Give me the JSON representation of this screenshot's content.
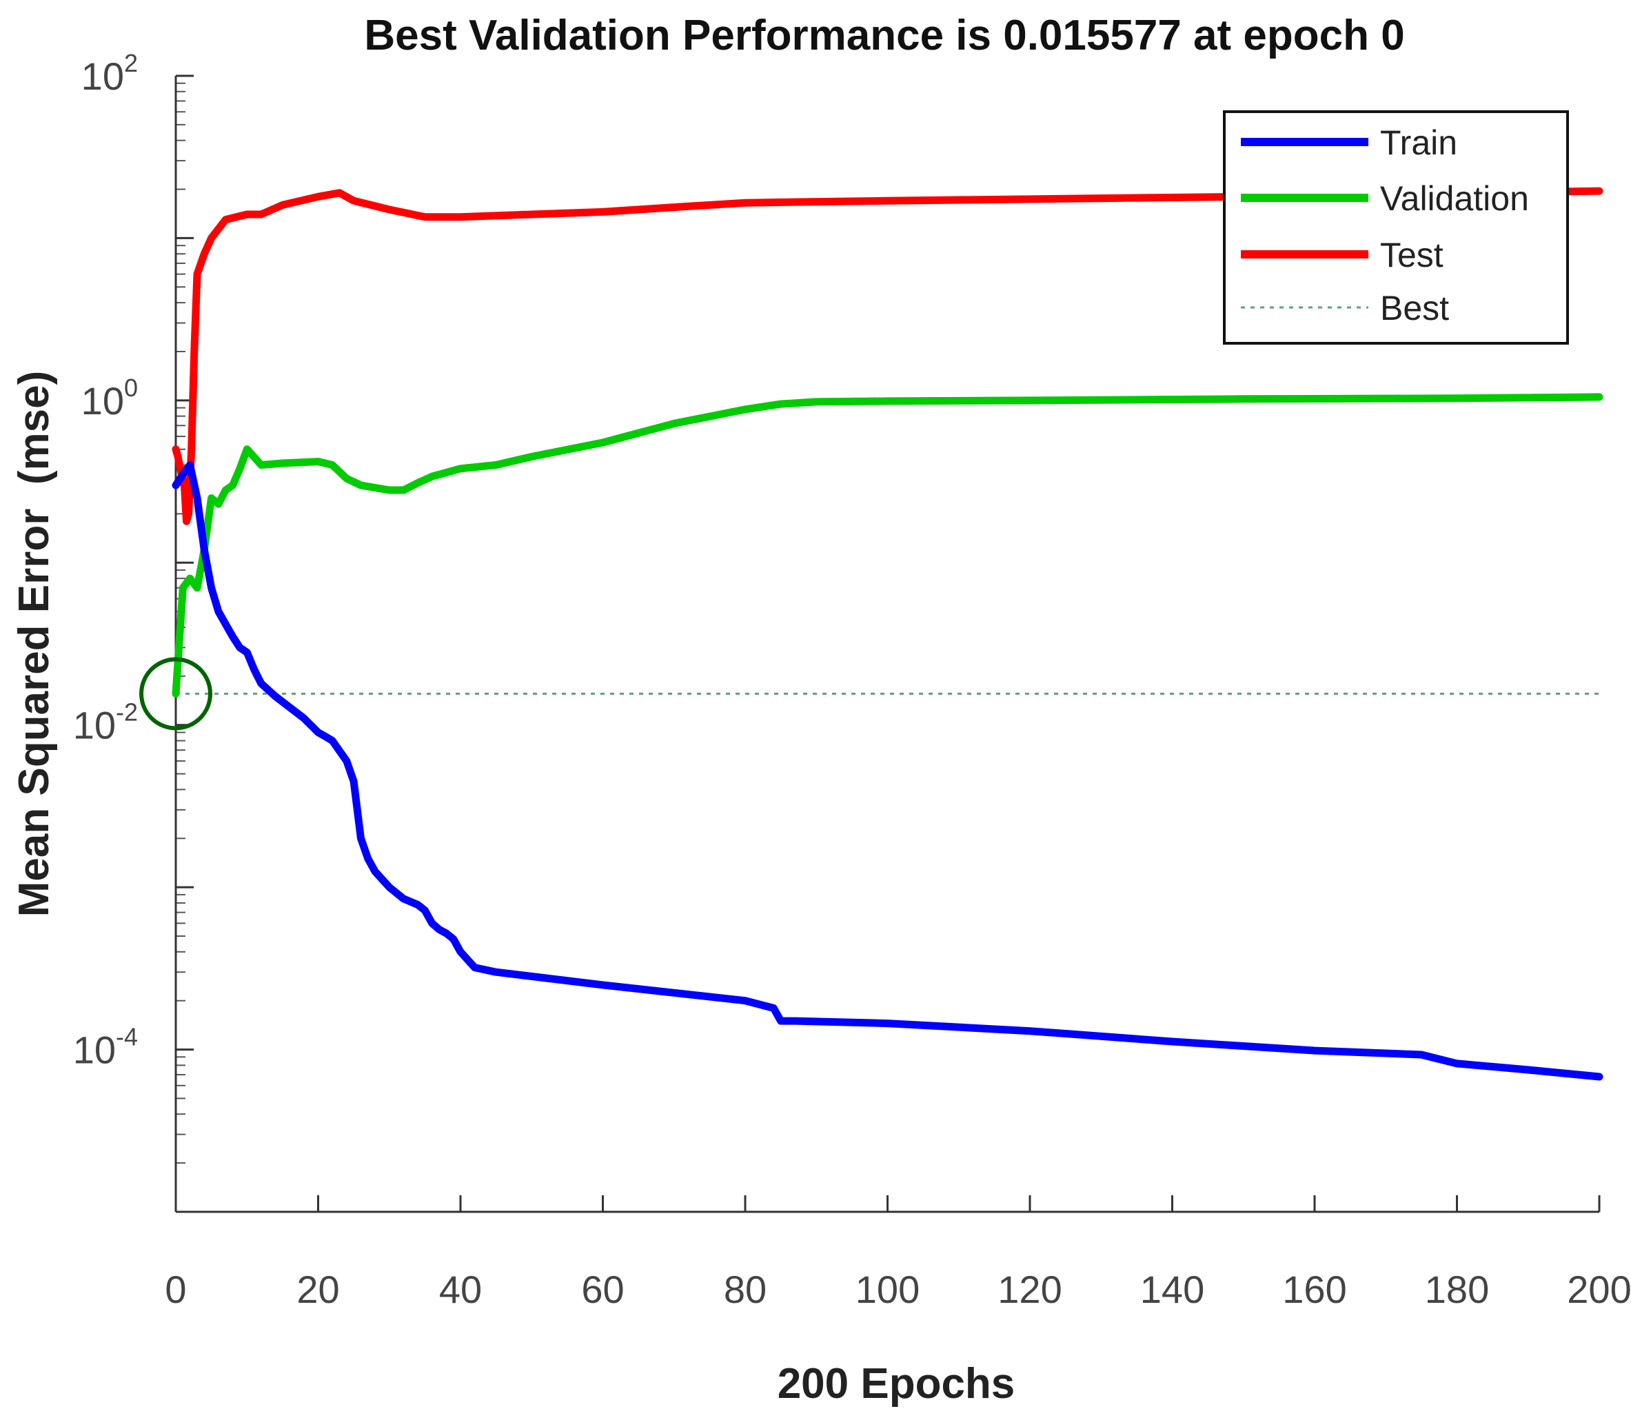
{
  "chart_data": {
    "type": "line",
    "title": "Best Validation Performance is 0.015577 at epoch 0",
    "xlabel": "200 Epochs",
    "ylabel": "Mean Squared Error  (mse)",
    "y_scale": "log",
    "xlim": [
      0,
      200
    ],
    "ylim_exp": [
      -5,
      2
    ],
    "x_ticks": [
      0,
      20,
      40,
      60,
      80,
      100,
      120,
      140,
      160,
      180,
      200
    ],
    "x_tick_labels": [
      "0",
      "20",
      "40",
      "60",
      "80",
      "100",
      "120",
      "140",
      "160",
      "180",
      "200"
    ],
    "y_tick_labels": [
      {
        "exp": -4,
        "base": "10",
        "sup": "-4"
      },
      {
        "exp": -2,
        "base": "10",
        "sup": "-2"
      },
      {
        "exp": 0,
        "base": "10",
        "sup": "0"
      },
      {
        "exp": 2,
        "base": "10",
        "sup": "2"
      }
    ],
    "legend_position": "top-right",
    "series": [
      {
        "name": "Train",
        "color": "#0000ff",
        "x": [
          0,
          1,
          2,
          3,
          4,
          5,
          6,
          8,
          9,
          10,
          11,
          12,
          14,
          18,
          20,
          21,
          22,
          24,
          25,
          26,
          27,
          28,
          30,
          32,
          34,
          35,
          36,
          37,
          38,
          39,
          40,
          42,
          45,
          60,
          80,
          84,
          85,
          87,
          100,
          120,
          140,
          160,
          175,
          180,
          190,
          200
        ],
        "y": [
          0.3,
          0.35,
          0.4,
          0.25,
          0.12,
          0.07,
          0.05,
          0.035,
          0.03,
          0.028,
          0.022,
          0.018,
          0.015,
          0.011,
          0.009,
          0.0085,
          0.008,
          0.006,
          0.0045,
          0.002,
          0.0015,
          0.00125,
          0.001,
          0.00085,
          0.00078,
          0.00072,
          0.0006,
          0.00055,
          0.00052,
          0.00048,
          0.0004,
          0.00032,
          0.0003,
          0.00025,
          0.0002,
          0.00018,
          0.00015,
          0.00015,
          0.000145,
          0.00013,
          0.000112,
          9.85e-05,
          9.3e-05,
          8.2e-05,
          7.5e-05,
          6.8e-05
        ]
      },
      {
        "name": "Validation",
        "color": "#00cc00",
        "x": [
          0,
          1,
          2,
          3,
          4,
          5,
          6,
          7,
          8,
          9,
          10,
          12,
          15,
          20,
          21,
          22,
          24,
          26,
          30,
          32,
          34,
          36,
          40,
          45,
          50,
          60,
          70,
          80,
          85,
          90,
          100,
          120,
          150,
          180,
          200
        ],
        "y": [
          0.015577,
          0.07,
          0.08,
          0.07,
          0.12,
          0.25,
          0.23,
          0.28,
          0.3,
          0.38,
          0.5,
          0.4,
          0.41,
          0.42,
          0.41,
          0.4,
          0.33,
          0.3,
          0.28,
          0.28,
          0.31,
          0.34,
          0.38,
          0.4,
          0.45,
          0.55,
          0.72,
          0.88,
          0.95,
          0.98,
          0.99,
          1.0,
          1.02,
          1.03,
          1.05
        ]
      },
      {
        "name": "Test",
        "color": "#ff0000",
        "x": [
          0,
          0.3,
          0.8,
          1.2,
          1.5,
          1.8,
          2.2,
          2.6,
          3,
          4,
          5,
          7,
          10,
          12,
          15,
          20,
          23,
          25,
          30,
          35,
          40,
          50,
          60,
          70,
          80,
          100,
          150,
          200
        ],
        "y": [
          0.5,
          0.45,
          0.35,
          0.3,
          0.18,
          0.2,
          0.5,
          2,
          6,
          8,
          10,
          13,
          14,
          14,
          16,
          18,
          19,
          17,
          15,
          13.5,
          13.5,
          14,
          14.5,
          15.5,
          16.5,
          17,
          18,
          19.5
        ]
      }
    ],
    "best_marker": {
      "epoch": 0,
      "value": 0.015577,
      "color": "#006400"
    },
    "best_line": {
      "value": 0.015577,
      "color": "#5ea07a"
    },
    "legend": [
      "Train",
      "Validation",
      "Test",
      "Best"
    ]
  }
}
